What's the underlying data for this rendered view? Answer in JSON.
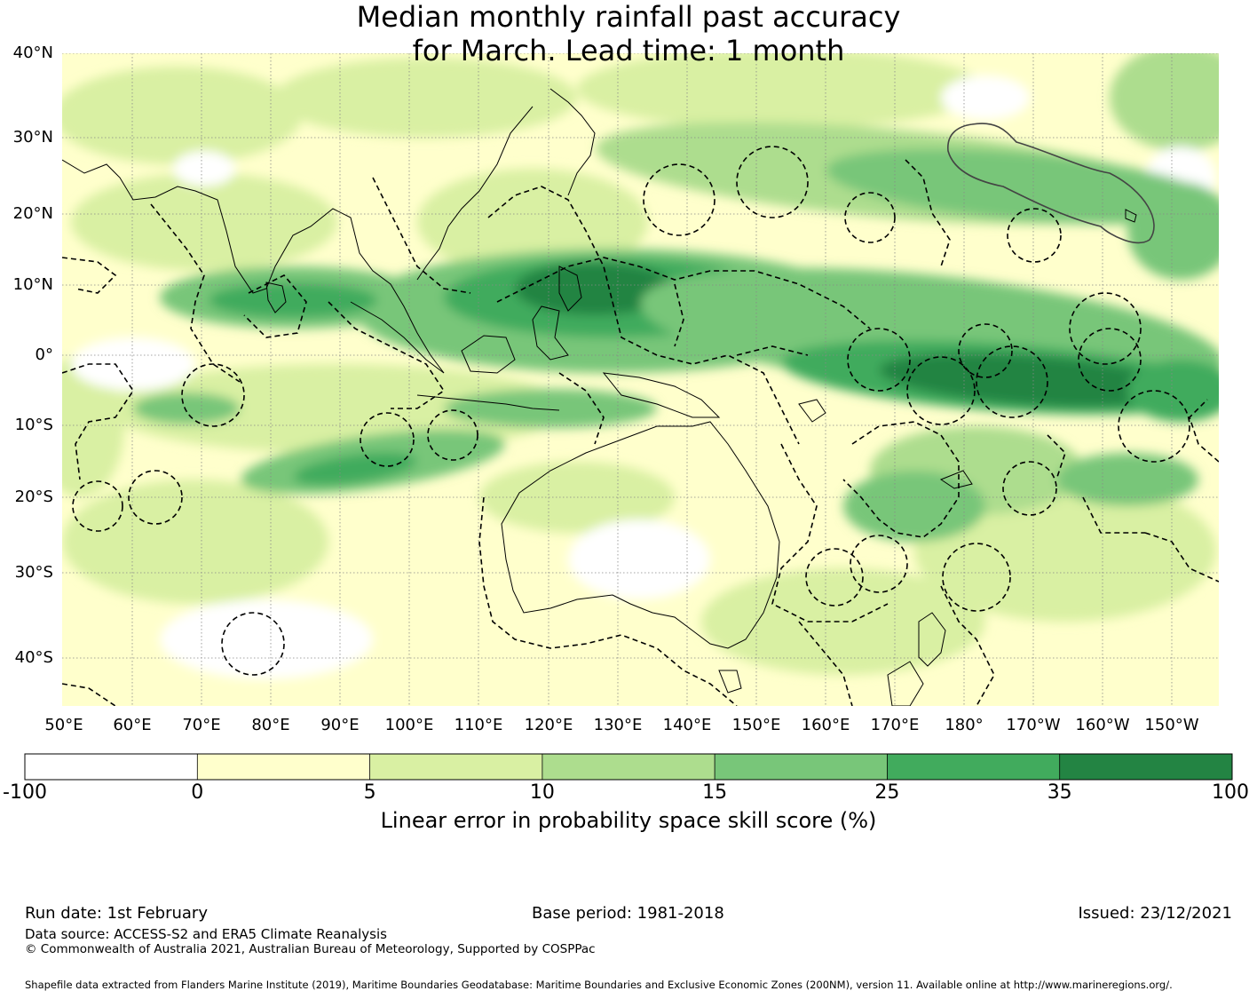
{
  "title": {
    "line1": "Median monthly rainfall past accuracy",
    "line2": "for March. Lead time: 1 month"
  },
  "map": {
    "lat_labels": [
      "40°N",
      "30°N",
      "20°N",
      "10°N",
      "0°",
      "10°S",
      "20°S",
      "30°S",
      "40°S"
    ],
    "lon_labels": [
      "50°E",
      "60°E",
      "70°E",
      "80°E",
      "90°E",
      "100°E",
      "110°E",
      "120°E",
      "130°E",
      "140°E",
      "150°E",
      "160°E",
      "170°E",
      "180°",
      "170°W",
      "160°W",
      "150°W"
    ]
  },
  "colorbar": {
    "label": "Linear error in probability space skill score (%)",
    "ticks": [
      "-100",
      "0",
      "5",
      "10",
      "15",
      "25",
      "35",
      "100"
    ],
    "colors": [
      "#ffffff",
      "#ffffcc",
      "#d9f0a3",
      "#addd8e",
      "#78c679",
      "#41ab5d",
      "#238443"
    ]
  },
  "footer": {
    "run_date": "Run date: 1st February",
    "base_period": "Base period: 1981-2018",
    "issued": "Issued: 23/12/2021",
    "data_source": "Data source: ACCESS-S2 and ERA5 Climate Reanalysis",
    "copyright": "© Commonwealth of Australia 2021, Australian Bureau of Meteorology, Supported by COSPPac",
    "shapefile": "Shapefile data extracted from Flanders Marine Institute (2019), Maritime Boundaries Geodatabase: Maritime Boundaries and Exclusive Economic Zones (200NM), version 11. Available online at http://www.marineregions.org/."
  }
}
